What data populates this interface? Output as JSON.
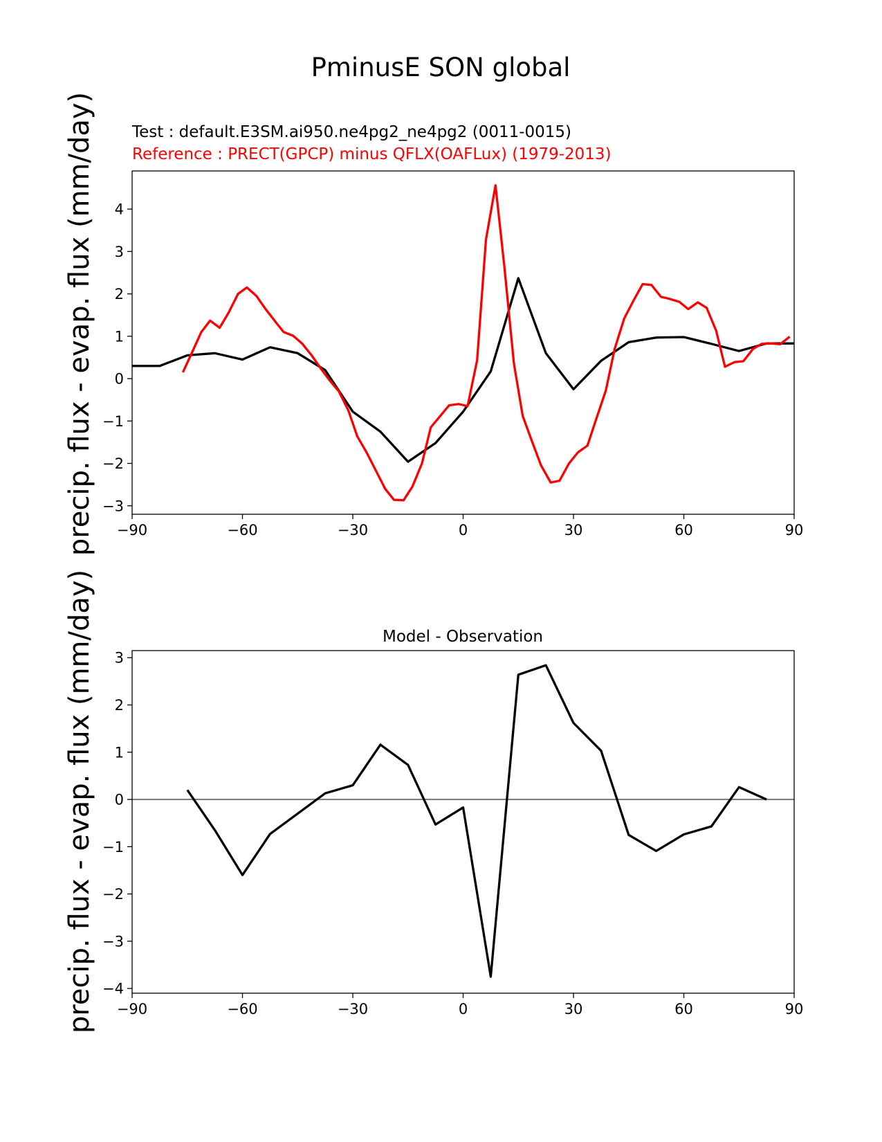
{
  "figure": {
    "title": "PminusE SON global",
    "test_label": "Test : default.E3SM.ai950.ne4pg2_ne4pg2 (0011-0015)",
    "reference_label": "Reference : PRECT(GPCP) minus QFLX(OAFLux) (1979-2013)",
    "colors": {
      "test": "#000000",
      "reference": "#ff0000",
      "zero_line": "#808080",
      "axes": "#000000"
    }
  },
  "chart_data": [
    {
      "type": "line",
      "title": "",
      "xlabel": "",
      "ylabel": "precip. flux - evap. flux (mm/day)",
      "xlim": [
        -90,
        90
      ],
      "ylim": [
        -3.2,
        4.9
      ],
      "xticks": [
        -90,
        -60,
        -30,
        0,
        30,
        60,
        90
      ],
      "yticks": [
        -3,
        -2,
        -1,
        0,
        1,
        2,
        3,
        4
      ],
      "grid": false,
      "series": [
        {
          "name": "",
          "color": "#000000",
          "x": [
            -90,
            -82.5,
            -75,
            -67.5,
            -60,
            -52.5,
            -45,
            -37.5,
            -30,
            -22.5,
            -15,
            -7.5,
            0,
            7.5,
            15,
            22.5,
            30,
            37.5,
            45,
            52.5,
            60,
            67.5,
            75,
            82.5,
            90
          ],
          "y": [
            0.3,
            0.3,
            0.55,
            0.6,
            0.45,
            0.74,
            0.6,
            0.2,
            -0.78,
            -1.25,
            -1.96,
            -1.52,
            -0.78,
            0.17,
            2.37,
            0.6,
            -0.25,
            0.42,
            0.86,
            0.97,
            0.98,
            0.82,
            0.65,
            0.83,
            0.83
          ]
        },
        {
          "name": "",
          "color": "#ff0000",
          "x": [
            -76.2,
            -73.7,
            -71.2,
            -68.8,
            -66.2,
            -63.8,
            -61.2,
            -58.8,
            -56.2,
            -53.8,
            -51.2,
            -48.8,
            -46.2,
            -43.8,
            -41.2,
            -38.8,
            -36.2,
            -33.8,
            -31.2,
            -28.8,
            -26.2,
            -23.8,
            -21.2,
            -18.8,
            -16.2,
            -13.8,
            -11.2,
            -8.8,
            -6.2,
            -3.8,
            -1.2,
            1.2,
            3.8,
            6.2,
            8.8,
            11.2,
            13.8,
            16.2,
            18.8,
            21.2,
            23.8,
            26.2,
            28.8,
            31.2,
            33.8,
            36.2,
            38.8,
            41.2,
            43.8,
            46.2,
            48.8,
            51.2,
            53.8,
            56.2,
            58.8,
            61.2,
            63.8,
            66.2,
            68.8,
            71.2,
            73.8,
            76.2,
            78.8,
            81.2,
            83.8,
            86.2,
            88.8
          ],
          "y": [
            0.15,
            0.62,
            1.1,
            1.37,
            1.2,
            1.55,
            2.0,
            2.15,
            1.95,
            1.65,
            1.36,
            1.1,
            1.01,
            0.83,
            0.55,
            0.25,
            -0.05,
            -0.3,
            -0.75,
            -1.36,
            -1.75,
            -2.16,
            -2.6,
            -2.86,
            -2.87,
            -2.55,
            -2.0,
            -1.15,
            -0.88,
            -0.63,
            -0.6,
            -0.65,
            0.43,
            3.28,
            4.56,
            2.66,
            0.36,
            -0.88,
            -1.5,
            -2.05,
            -2.45,
            -2.41,
            -2.0,
            -1.74,
            -1.58,
            -0.95,
            -0.28,
            0.7,
            1.42,
            1.82,
            2.23,
            2.21,
            1.93,
            1.88,
            1.81,
            1.64,
            1.8,
            1.67,
            1.13,
            0.28,
            0.39,
            0.41,
            0.7,
            0.82,
            0.83,
            0.81,
            0.99
          ]
        }
      ]
    },
    {
      "type": "line",
      "title": "Model - Observation",
      "xlabel": "",
      "ylabel": "precip. flux - evap. flux (mm/day)",
      "xlim": [
        -90,
        90
      ],
      "ylim": [
        -4.1,
        3.15
      ],
      "xticks": [
        -90,
        -60,
        -30,
        0,
        30,
        60,
        90
      ],
      "yticks": [
        -4,
        -3,
        -2,
        -1,
        0,
        1,
        2,
        3
      ],
      "grid": false,
      "zero_line": true,
      "series": [
        {
          "name": "",
          "color": "#000000",
          "x": [
            -75,
            -67.5,
            -60,
            -52.5,
            -45,
            -37.5,
            -30,
            -22.5,
            -15,
            -7.5,
            0,
            7.5,
            15,
            22.5,
            30,
            37.5,
            45,
            52.5,
            60,
            67.5,
            75,
            82.5
          ],
          "y": [
            0.2,
            -0.65,
            -1.6,
            -0.73,
            -0.3,
            0.13,
            0.3,
            1.16,
            0.73,
            -0.53,
            -0.17,
            -3.75,
            2.64,
            2.84,
            1.62,
            1.03,
            -0.75,
            -1.09,
            -0.74,
            -0.57,
            0.26,
            0.0
          ]
        }
      ]
    }
  ]
}
